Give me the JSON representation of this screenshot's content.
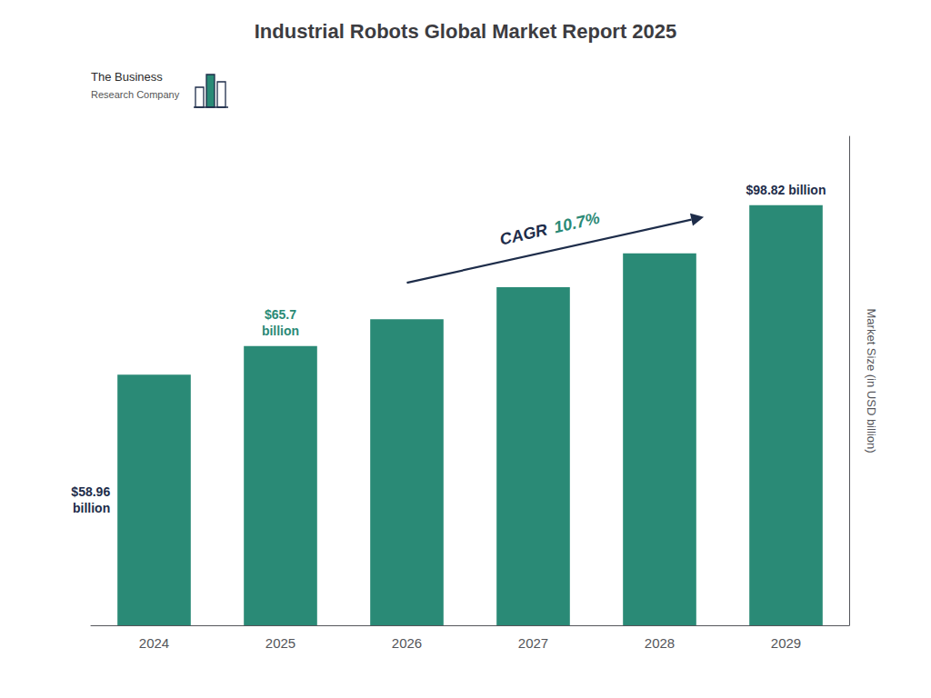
{
  "chart_data": {
    "type": "bar",
    "title": "Industrial Robots Global Market Report 2025",
    "categories": [
      "2024",
      "2025",
      "2026",
      "2027",
      "2028",
      "2029"
    ],
    "values": [
      58.96,
      65.7,
      72.0,
      79.5,
      87.5,
      98.82
    ],
    "color": "#2a8a76",
    "ylabel": "Market Size (in USD billion)",
    "ylim": [
      0,
      115
    ],
    "grid": false,
    "tick_labels": "x",
    "annotations": [
      {
        "text": "$58.96\nbillion",
        "category": "2024",
        "color": "#1e2d4a"
      },
      {
        "text": "$65.7\nbillion",
        "category": "2025",
        "color": "#2a8a76"
      },
      {
        "text": "$98.82 billion",
        "category": "2029",
        "color": "#1e2d4a"
      }
    ],
    "cagr": {
      "label": "CAGR",
      "value_text": "10.7%",
      "label_color": "#1e2d4a",
      "value_color": "#2a8a76",
      "arrow_color": "#1e2d4a"
    },
    "logo": {
      "texts": [
        "The Business",
        "Research Company"
      ],
      "color": "#2a8a76",
      "outline_color": "#1e2d4a"
    }
  }
}
